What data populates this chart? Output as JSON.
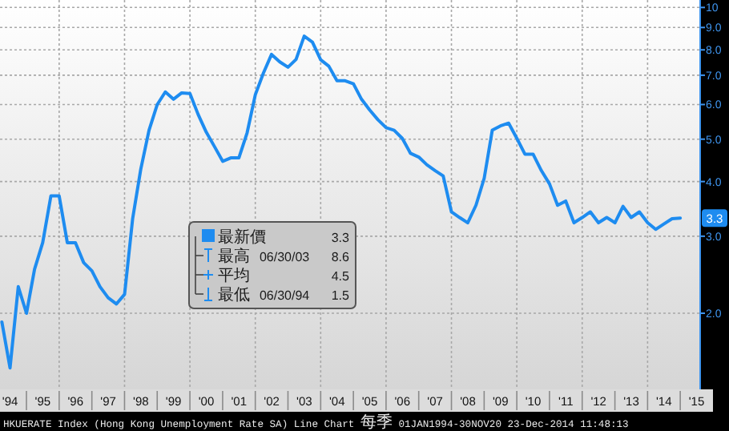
{
  "chart_data": {
    "type": "line",
    "log": "y",
    "grid": true,
    "legend": "bottom left",
    "x": [
      "1994-03-31",
      "1994-06-30",
      "1994-09-30",
      "1994-12-31",
      "1995-03-31",
      "1995-06-30",
      "1995-09-30",
      "1995-12-31",
      "1996-03-31",
      "1996-06-30",
      "1996-09-30",
      "1996-12-31",
      "1997-03-31",
      "1997-06-30",
      "1997-09-30",
      "1997-12-31",
      "1998-03-31",
      "1998-06-30",
      "1998-09-30",
      "1998-12-31",
      "1999-03-31",
      "1999-06-30",
      "1999-09-30",
      "1999-12-31",
      "2000-03-31",
      "2000-06-30",
      "2000-09-30",
      "2000-12-31",
      "2001-03-31",
      "2001-06-30",
      "2001-09-30",
      "2001-12-31",
      "2002-03-31",
      "2002-06-30",
      "2002-09-30",
      "2002-12-31",
      "2003-03-31",
      "2003-06-30",
      "2003-09-30",
      "2003-12-31",
      "2004-03-31",
      "2004-06-30",
      "2004-09-30",
      "2004-12-31",
      "2005-03-31",
      "2005-06-30",
      "2005-09-30",
      "2005-12-31",
      "2006-03-31",
      "2006-06-30",
      "2006-09-30",
      "2006-12-31",
      "2007-03-31",
      "2007-06-30",
      "2007-09-30",
      "2007-12-31",
      "2008-03-31",
      "2008-06-30",
      "2008-09-30",
      "2008-12-31",
      "2009-03-31",
      "2009-06-30",
      "2009-09-30",
      "2009-12-31",
      "2010-03-31",
      "2010-06-30",
      "2010-09-30",
      "2010-12-31",
      "2011-03-31",
      "2011-06-30",
      "2011-09-30",
      "2011-12-31",
      "2012-03-31",
      "2012-06-30",
      "2012-09-30",
      "2012-12-31",
      "2013-03-31",
      "2013-06-30",
      "2013-09-30",
      "2013-12-31",
      "2014-03-31",
      "2014-06-30",
      "2014-09-30",
      "2014-12-31"
    ],
    "series": [
      {
        "name": "最新價",
        "color": "#1e8cf0",
        "values": [
          1.91,
          1.5,
          2.3,
          2.0,
          2.52,
          2.9,
          3.71,
          3.71,
          2.9,
          2.9,
          2.61,
          2.5,
          2.3,
          2.17,
          2.1,
          2.21,
          3.29,
          4.27,
          5.24,
          6.0,
          6.41,
          6.17,
          6.38,
          6.36,
          5.7,
          5.19,
          4.81,
          4.45,
          4.53,
          4.53,
          5.17,
          6.32,
          7.08,
          7.81,
          7.51,
          7.3,
          7.61,
          8.6,
          8.33,
          7.59,
          7.34,
          6.8,
          6.8,
          6.69,
          6.17,
          5.83,
          5.54,
          5.31,
          5.24,
          5.02,
          4.64,
          4.55,
          4.37,
          4.24,
          4.12,
          3.41,
          3.31,
          3.22,
          3.53,
          4.07,
          5.24,
          5.36,
          5.44,
          5.02,
          4.62,
          4.62,
          4.24,
          3.95,
          3.53,
          3.61,
          3.22,
          3.31,
          3.41,
          3.22,
          3.31,
          3.22,
          3.51,
          3.31,
          3.41,
          3.22,
          3.11,
          3.2,
          3.29,
          3.3
        ]
      }
    ],
    "xlim": [
      "1994-03-10",
      "2015-08-10"
    ],
    "xticks": [
      {
        "value": "1994-07-01",
        "label": "'94"
      },
      {
        "value": "1995-07-01",
        "label": "'95"
      },
      {
        "value": "1996-07-01",
        "label": "'96"
      },
      {
        "value": "1997-07-01",
        "label": "'97"
      },
      {
        "value": "1998-07-01",
        "label": "'98"
      },
      {
        "value": "1999-07-01",
        "label": "'99"
      },
      {
        "value": "2000-07-01",
        "label": "'00"
      },
      {
        "value": "2001-07-01",
        "label": "'01"
      },
      {
        "value": "2002-07-01",
        "label": "'02"
      },
      {
        "value": "2003-07-01",
        "label": "'03"
      },
      {
        "value": "2004-07-01",
        "label": "'04"
      },
      {
        "value": "2005-07-01",
        "label": "'05"
      },
      {
        "value": "2006-07-01",
        "label": "'06"
      },
      {
        "value": "2007-07-01",
        "label": "'07"
      },
      {
        "value": "2008-07-01",
        "label": "'08"
      },
      {
        "value": "2009-07-01",
        "label": "'09"
      },
      {
        "value": "2010-07-01",
        "label": "'10"
      },
      {
        "value": "2011-07-01",
        "label": "'11"
      },
      {
        "value": "2012-07-01",
        "label": "'12"
      },
      {
        "value": "2013-07-01",
        "label": "'13"
      },
      {
        "value": "2014-07-01",
        "label": "'14"
      },
      {
        "value": "2015-07-01",
        "label": "'15"
      }
    ],
    "ylim": [
      1.34,
      10.4
    ],
    "yticks": [
      {
        "value": 2,
        "label": "2.0"
      },
      {
        "value": 3,
        "label": "3.0"
      },
      {
        "value": 4,
        "label": "4.0"
      },
      {
        "value": 5,
        "label": "5.0"
      },
      {
        "value": 6,
        "label": "6.0"
      },
      {
        "value": 7,
        "label": "7.0"
      },
      {
        "value": 8,
        "label": "8.0"
      },
      {
        "value": 9,
        "label": "9.0"
      },
      10
    ],
    "annotations": [
      "3.3",
      "最高 06/30/03 8.6",
      "平均 4.5",
      "最低 06/30/94 1.5",
      {
        "text": "3.3",
        "x": "2014-12-31",
        "y": 3.3
      },
      "HKUERATE Index (Hong Kong Unemployment Rate SA) Line Chart 每季 01JAN1994-30NOV20 23-Dec-2014 11:48:13"
    ]
  }
}
